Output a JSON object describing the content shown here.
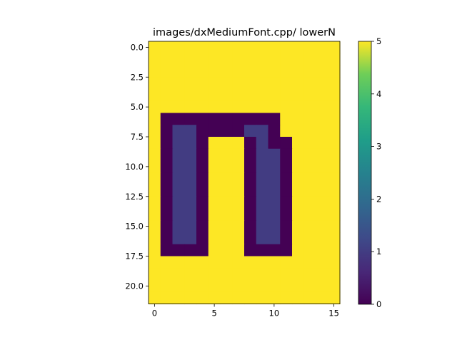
{
  "chart_data": {
    "type": "heatmap",
    "title": "images/dxMediumFont.cpp/ lowerN",
    "xlabel": "",
    "ylabel": "",
    "colormap": "viridis",
    "vmin": 0,
    "vmax": 5,
    "x_ticks": [
      "0",
      "5",
      "10",
      "15"
    ],
    "y_ticks": [
      "0.0",
      "2.5",
      "5.0",
      "7.5",
      "10.0",
      "12.5",
      "15.0",
      "17.5",
      "20.0"
    ],
    "colorbar_ticks": [
      "0",
      "1",
      "2",
      "3",
      "4",
      "5"
    ],
    "rows": 22,
    "cols": 16,
    "matrix": [
      [
        5,
        5,
        5,
        5,
        5,
        5,
        5,
        5,
        5,
        5,
        5,
        5,
        5,
        5,
        5,
        5
      ],
      [
        5,
        5,
        5,
        5,
        5,
        5,
        5,
        5,
        5,
        5,
        5,
        5,
        5,
        5,
        5,
        5
      ],
      [
        5,
        5,
        5,
        5,
        5,
        5,
        5,
        5,
        5,
        5,
        5,
        5,
        5,
        5,
        5,
        5
      ],
      [
        5,
        5,
        5,
        5,
        5,
        5,
        5,
        5,
        5,
        5,
        5,
        5,
        5,
        5,
        5,
        5
      ],
      [
        5,
        5,
        5,
        5,
        5,
        5,
        5,
        5,
        5,
        5,
        5,
        5,
        5,
        5,
        5,
        5
      ],
      [
        5,
        5,
        5,
        5,
        5,
        5,
        5,
        5,
        5,
        5,
        5,
        5,
        5,
        5,
        5,
        5
      ],
      [
        5,
        0,
        0,
        0,
        0,
        0,
        0,
        0,
        0,
        0,
        0,
        5,
        5,
        5,
        5,
        5
      ],
      [
        5,
        0,
        1,
        1,
        0,
        0,
        0,
        0,
        1,
        1,
        0,
        5,
        5,
        5,
        5,
        5
      ],
      [
        5,
        0,
        1,
        1,
        0,
        5,
        5,
        5,
        0,
        1,
        0,
        0,
        5,
        5,
        5,
        5
      ],
      [
        5,
        0,
        1,
        1,
        0,
        5,
        5,
        5,
        0,
        1,
        1,
        0,
        5,
        5,
        5,
        5
      ],
      [
        5,
        0,
        1,
        1,
        0,
        5,
        5,
        5,
        0,
        1,
        1,
        0,
        5,
        5,
        5,
        5
      ],
      [
        5,
        0,
        1,
        1,
        0,
        5,
        5,
        5,
        0,
        1,
        1,
        0,
        5,
        5,
        5,
        5
      ],
      [
        5,
        0,
        1,
        1,
        0,
        5,
        5,
        5,
        0,
        1,
        1,
        0,
        5,
        5,
        5,
        5
      ],
      [
        5,
        0,
        1,
        1,
        0,
        5,
        5,
        5,
        0,
        1,
        1,
        0,
        5,
        5,
        5,
        5
      ],
      [
        5,
        0,
        1,
        1,
        0,
        5,
        5,
        5,
        0,
        1,
        1,
        0,
        5,
        5,
        5,
        5
      ],
      [
        5,
        0,
        1,
        1,
        0,
        5,
        5,
        5,
        0,
        1,
        1,
        0,
        5,
        5,
        5,
        5
      ],
      [
        5,
        0,
        1,
        1,
        0,
        5,
        5,
        5,
        0,
        1,
        1,
        0,
        5,
        5,
        5,
        5
      ],
      [
        5,
        0,
        0,
        0,
        0,
        5,
        5,
        5,
        0,
        0,
        0,
        0,
        5,
        5,
        5,
        5
      ],
      [
        5,
        5,
        5,
        5,
        5,
        5,
        5,
        5,
        5,
        5,
        5,
        5,
        5,
        5,
        5,
        5
      ],
      [
        5,
        5,
        5,
        5,
        5,
        5,
        5,
        5,
        5,
        5,
        5,
        5,
        5,
        5,
        5,
        5
      ],
      [
        5,
        5,
        5,
        5,
        5,
        5,
        5,
        5,
        5,
        5,
        5,
        5,
        5,
        5,
        5,
        5
      ],
      [
        5,
        5,
        5,
        5,
        5,
        5,
        5,
        5,
        5,
        5,
        5,
        5,
        5,
        5,
        5,
        5
      ]
    ]
  }
}
